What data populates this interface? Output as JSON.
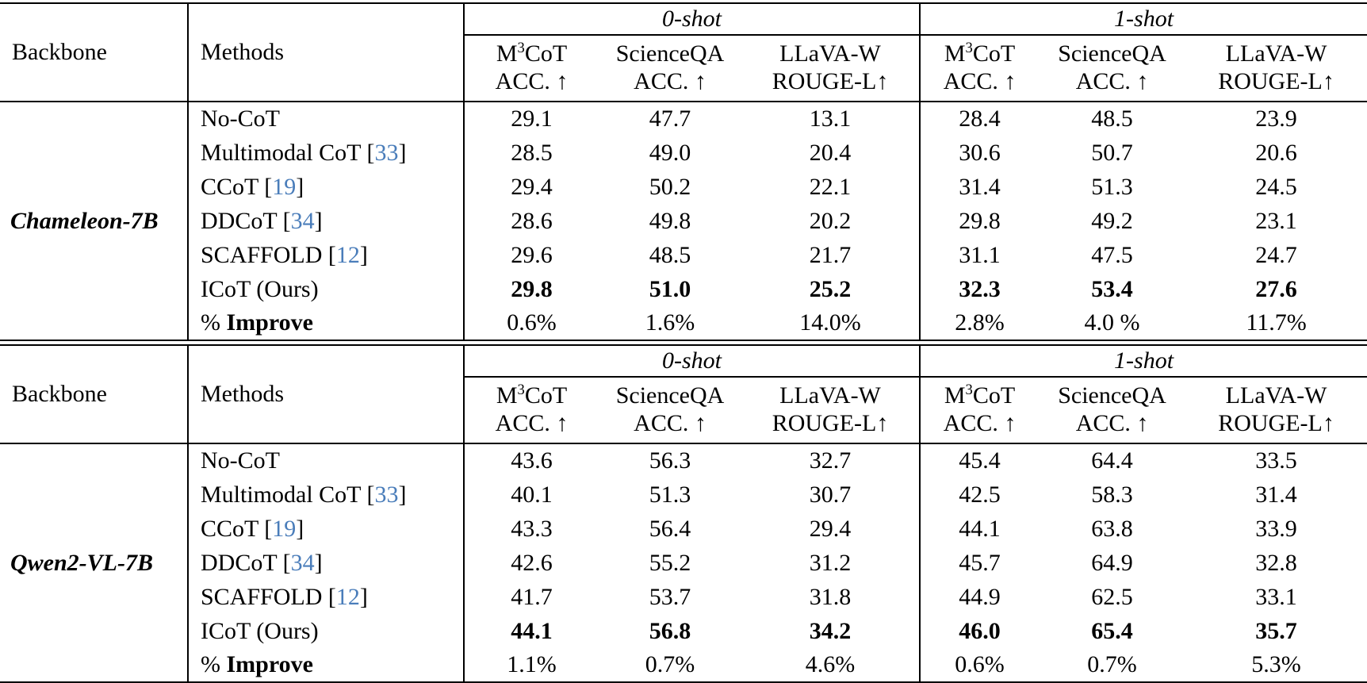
{
  "colors": {
    "text": "#000000",
    "background": "#ffffff",
    "rule": "#000000",
    "citation": "#4a7dba"
  },
  "tables": [
    {
      "backbone": "Chameleon-7B",
      "header": {
        "backbone_label": "Backbone",
        "methods_label": "Methods",
        "groups": [
          {
            "label": "0-shot"
          },
          {
            "label": "1-shot"
          }
        ],
        "benchmarks": [
          {
            "name": [
              {
                "t": "M"
              },
              {
                "t": "3",
                "sup": true
              },
              {
                "t": "CoT"
              }
            ],
            "metric": "ACC. ↑"
          },
          {
            "name": [
              {
                "t": "ScienceQA"
              }
            ],
            "metric": "ACC. ↑"
          },
          {
            "name": [
              {
                "t": "LLaVA-W"
              }
            ],
            "metric": "ROUGE-L↑"
          },
          {
            "name": [
              {
                "t": "M"
              },
              {
                "t": "3",
                "sup": true
              },
              {
                "t": "CoT"
              }
            ],
            "metric": "ACC. ↑"
          },
          {
            "name": [
              {
                "t": "ScienceQA"
              }
            ],
            "metric": "ACC. ↑"
          },
          {
            "name": [
              {
                "t": "LLaVA-W"
              }
            ],
            "metric": "ROUGE-L↑"
          }
        ]
      },
      "rows": [
        {
          "method": [
            {
              "t": "No-CoT"
            }
          ],
          "values": [
            "29.1",
            "47.7",
            "13.1",
            "28.4",
            "48.5",
            "23.9"
          ],
          "bold": false
        },
        {
          "method": [
            {
              "t": "Multimodal CoT ["
            },
            {
              "t": "33",
              "cite": true
            },
            {
              "t": "]"
            }
          ],
          "values": [
            "28.5",
            "49.0",
            "20.4",
            "30.6",
            "50.7",
            "20.6"
          ],
          "bold": false
        },
        {
          "method": [
            {
              "t": "CCoT ["
            },
            {
              "t": "19",
              "cite": true
            },
            {
              "t": "]"
            }
          ],
          "values": [
            "29.4",
            "50.2",
            "22.1",
            "31.4",
            "51.3",
            "24.5"
          ],
          "bold": false
        },
        {
          "method": [
            {
              "t": "DDCoT ["
            },
            {
              "t": "34",
              "cite": true
            },
            {
              "t": "]"
            }
          ],
          "values": [
            "28.6",
            "49.8",
            "20.2",
            "29.8",
            "49.2",
            "23.1"
          ],
          "bold": false
        },
        {
          "method": [
            {
              "t": "SCAFFOLD ["
            },
            {
              "t": "12",
              "cite": true
            },
            {
              "t": "]"
            }
          ],
          "values": [
            "29.6",
            "48.5",
            "21.7",
            "31.1",
            "47.5",
            "24.7"
          ],
          "bold": false
        },
        {
          "method": [
            {
              "t": "ICoT (Ours)"
            }
          ],
          "values": [
            "29.8",
            "51.0",
            "25.2",
            "32.3",
            "53.4",
            "27.6"
          ],
          "bold": true
        },
        {
          "method": [
            {
              "t": "% "
            },
            {
              "t": "Improve",
              "bold": true
            }
          ],
          "values": [
            "0.6%",
            "1.6%",
            "14.0%",
            "2.8%",
            "4.0 %",
            "11.7%"
          ],
          "bold": false
        }
      ]
    },
    {
      "backbone": "Qwen2-VL-7B",
      "header": {
        "backbone_label": "Backbone",
        "methods_label": "Methods",
        "groups": [
          {
            "label": "0-shot"
          },
          {
            "label": "1-shot"
          }
        ],
        "benchmarks": [
          {
            "name": [
              {
                "t": "M"
              },
              {
                "t": "3",
                "sup": true
              },
              {
                "t": "CoT"
              }
            ],
            "metric": "ACC. ↑"
          },
          {
            "name": [
              {
                "t": "ScienceQA"
              }
            ],
            "metric": "ACC. ↑"
          },
          {
            "name": [
              {
                "t": "LLaVA-W"
              }
            ],
            "metric": "ROUGE-L↑"
          },
          {
            "name": [
              {
                "t": "M"
              },
              {
                "t": "3",
                "sup": true
              },
              {
                "t": "CoT"
              }
            ],
            "metric": "ACC. ↑"
          },
          {
            "name": [
              {
                "t": "ScienceQA"
              }
            ],
            "metric": "ACC. ↑"
          },
          {
            "name": [
              {
                "t": "LLaVA-W"
              }
            ],
            "metric": "ROUGE-L↑"
          }
        ]
      },
      "rows": [
        {
          "method": [
            {
              "t": "No-CoT"
            }
          ],
          "values": [
            "43.6",
            "56.3",
            "32.7",
            "45.4",
            "64.4",
            "33.5"
          ],
          "bold": false
        },
        {
          "method": [
            {
              "t": "Multimodal CoT ["
            },
            {
              "t": "33",
              "cite": true
            },
            {
              "t": "]"
            }
          ],
          "values": [
            "40.1",
            "51.3",
            "30.7",
            "42.5",
            "58.3",
            "31.4"
          ],
          "bold": false
        },
        {
          "method": [
            {
              "t": "CCoT ["
            },
            {
              "t": "19",
              "cite": true
            },
            {
              "t": "]"
            }
          ],
          "values": [
            "43.3",
            "56.4",
            "29.4",
            "44.1",
            "63.8",
            "33.9"
          ],
          "bold": false
        },
        {
          "method": [
            {
              "t": "DDCoT ["
            },
            {
              "t": "34",
              "cite": true
            },
            {
              "t": "]"
            }
          ],
          "values": [
            "42.6",
            "55.2",
            "31.2",
            "45.7",
            "64.9",
            "32.8"
          ],
          "bold": false
        },
        {
          "method": [
            {
              "t": "SCAFFOLD ["
            },
            {
              "t": "12",
              "cite": true
            },
            {
              "t": "]"
            }
          ],
          "values": [
            "41.7",
            "53.7",
            "31.8",
            "44.9",
            "62.5",
            "33.1"
          ],
          "bold": false
        },
        {
          "method": [
            {
              "t": "ICoT (Ours)"
            }
          ],
          "values": [
            "44.1",
            "56.8",
            "34.2",
            "46.0",
            "65.4",
            "35.7"
          ],
          "bold": true
        },
        {
          "method": [
            {
              "t": "% "
            },
            {
              "t": "Improve",
              "bold": true
            }
          ],
          "values": [
            "1.1%",
            "0.7%",
            "4.6%",
            "0.6%",
            "0.7%",
            "5.3%"
          ],
          "bold": false
        }
      ]
    }
  ]
}
